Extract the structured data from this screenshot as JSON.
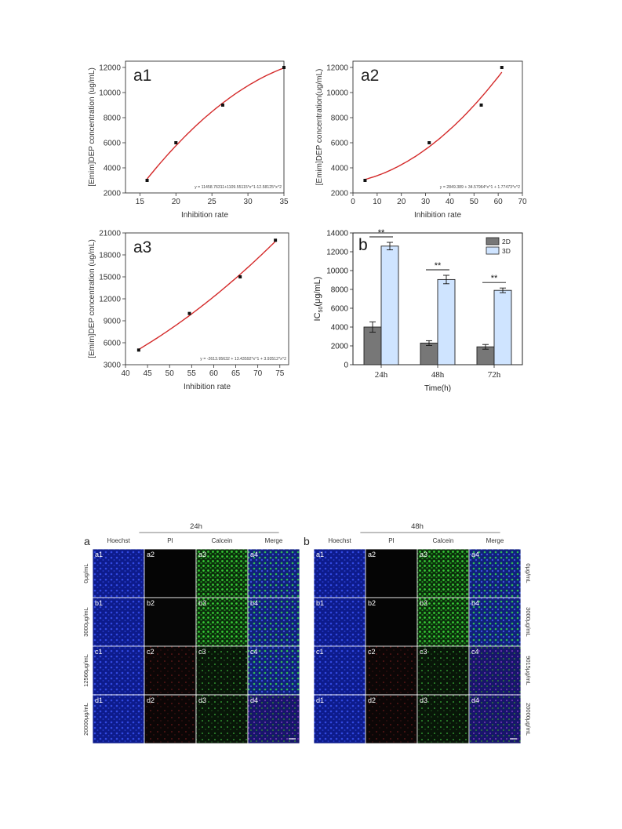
{
  "figure_top": {
    "charts": [
      {
        "panel_label": "a1",
        "equation": "y = 11458.76311+1109.55115*x^1-12.58125*x^2",
        "chart_data": {
          "type": "scatter",
          "x": [
            16,
            20,
            26.5,
            35
          ],
          "y": [
            3000,
            6000,
            9000,
            12000
          ],
          "xlim": [
            13,
            35
          ],
          "ylim": [
            2000,
            12500
          ],
          "xticks": [
            "15",
            "20",
            "25",
            "30",
            "35"
          ],
          "yticks": [
            "2000",
            "4000",
            "6000",
            "8000",
            "10000",
            "12000"
          ],
          "xlabel": "Inhibition rate",
          "ylabel": "[Emim]DEP concentration (ug/mL)"
        }
      },
      {
        "panel_label": "a2",
        "equation": "y = 2849.389 + 34.57964*x^1 + 1.77473*x^2",
        "chart_data": {
          "type": "scatter",
          "x": [
            5,
            31.5,
            53,
            61.5
          ],
          "y": [
            3000,
            6000,
            9000,
            12000
          ],
          "xlim": [
            0,
            70
          ],
          "ylim": [
            2000,
            12500
          ],
          "xticks": [
            "0",
            "10",
            "20",
            "30",
            "40",
            "50",
            "60",
            "70"
          ],
          "yticks": [
            "2000",
            "4000",
            "6000",
            "8000",
            "10000",
            "12000"
          ],
          "xlabel": "Inhibition rate",
          "ylabel": "[Emim]DEP concentration(ug/mL)"
        }
      },
      {
        "panel_label": "a3",
        "equation": "y = -2613.95632 + 13.43592*x^1 + 3.93512*x^2",
        "chart_data": {
          "type": "scatter",
          "x": [
            43,
            54.5,
            66,
            74
          ],
          "y": [
            5000,
            10000,
            15000,
            20000
          ],
          "xlim": [
            40,
            77
          ],
          "ylim": [
            3000,
            21000
          ],
          "xticks": [
            "40",
            "45",
            "50",
            "55",
            "60",
            "65",
            "70",
            "75"
          ],
          "yticks": [
            "3000",
            "6000",
            "9000",
            "12000",
            "15000",
            "18000",
            "21000"
          ],
          "xlabel": "Inhibition rate",
          "ylabel": "[Emim]DEP concentration (ug/mL)"
        }
      },
      {
        "panel_label": "b",
        "chart_data": {
          "type": "bar",
          "categories": [
            "24h",
            "48h",
            "72h"
          ],
          "series": [
            {
              "name": "2D",
              "values": [
                4000,
                2300,
                1900
              ],
              "errors": [
                550,
                250,
                250
              ]
            },
            {
              "name": "3D",
              "values": [
                12600,
                9050,
                7900
              ],
              "errors": [
                400,
                450,
                250
              ]
            }
          ],
          "ylim": [
            0,
            14000
          ],
          "yticks": [
            "0",
            "2000",
            "4000",
            "6000",
            "8000",
            "10000",
            "12000",
            "14000"
          ],
          "xlabel": "Time(h)",
          "ylabel_main": "IC",
          "ylabel_sub": "50",
          "ylabel_tail": "(μg/mL)",
          "significance": [
            "**",
            "**",
            "**"
          ],
          "legend_position": "top-right"
        }
      }
    ]
  },
  "figure_bottom": {
    "panel_label": "a",
    "panel_label_b": "b",
    "timepoint_left": "24h",
    "timepoint_right": "48h",
    "channels": [
      "Hoechst",
      "PI",
      "Calcein",
      "Merge"
    ],
    "rows_left": [
      "0μg/mL",
      "3000μg/mL",
      "12566μg/mL",
      "20000μg/mL"
    ],
    "rows_right": [
      "0μg/mL",
      "3000μg/mL",
      "9015μg/mL",
      "20000μg/mL"
    ],
    "tile_labels": [
      [
        "a1",
        "a2",
        "a3",
        "a4"
      ],
      [
        "b1",
        "b2",
        "b3",
        "b4"
      ],
      [
        "c1",
        "c2",
        "c3",
        "c4"
      ],
      [
        "d1",
        "d2",
        "d3",
        "d4"
      ]
    ]
  }
}
